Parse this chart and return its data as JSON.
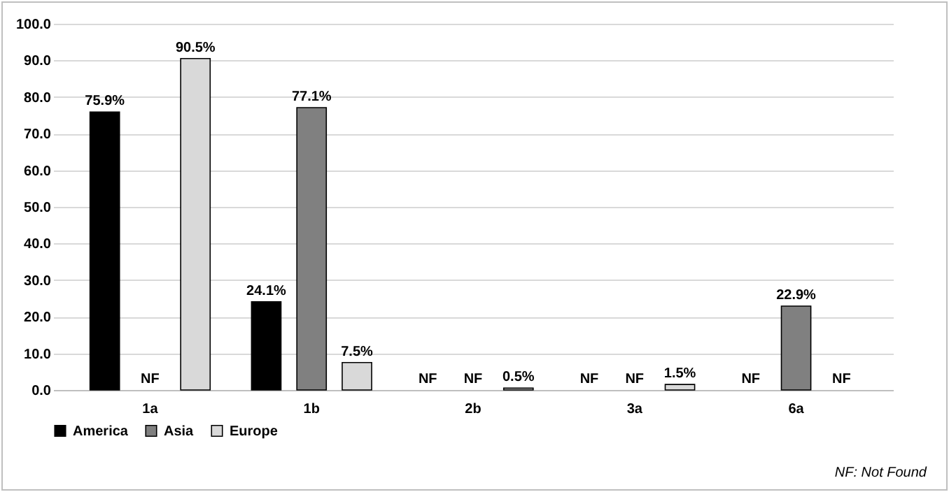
{
  "chart_data": {
    "type": "bar",
    "categories": [
      "1a",
      "1b",
      "2b",
      "3a",
      "6a"
    ],
    "series": [
      {
        "name": "America",
        "color": "#000000",
        "values": [
          75.9,
          24.1,
          null,
          null,
          null
        ],
        "value_labels": [
          "75.9%",
          "24.1%",
          "NF",
          "NF",
          "NF"
        ]
      },
      {
        "name": "Asia",
        "color": "#808080",
        "values": [
          null,
          77.1,
          null,
          null,
          22.9
        ],
        "value_labels": [
          "NF",
          "77.1%",
          "NF",
          "NF",
          "22.9%"
        ]
      },
      {
        "name": "Europe",
        "color": "#d9d9d9",
        "values": [
          90.5,
          7.5,
          0.5,
          1.5,
          null
        ],
        "value_labels": [
          "90.5%",
          "7.5%",
          "0.5%",
          "1.5%",
          "NF"
        ]
      }
    ],
    "ylim": [
      0,
      100
    ],
    "yticks": [
      {
        "value": 0,
        "label": "0.0"
      },
      {
        "value": 10,
        "label": "10.0"
      },
      {
        "value": 20,
        "label": "20.0"
      },
      {
        "value": 30,
        "label": "30.0"
      },
      {
        "value": 40,
        "label": "40.0"
      },
      {
        "value": 50,
        "label": "50.0"
      },
      {
        "value": 60,
        "label": "60.0"
      },
      {
        "value": 70,
        "label": "70.0"
      },
      {
        "value": 80,
        "label": "80.0"
      },
      {
        "value": 90,
        "label": "90.0"
      },
      {
        "value": 100,
        "label": "100.0"
      }
    ],
    "grid": "y",
    "legend": "bottom",
    "annotations": [
      "NF: Not Found"
    ]
  }
}
